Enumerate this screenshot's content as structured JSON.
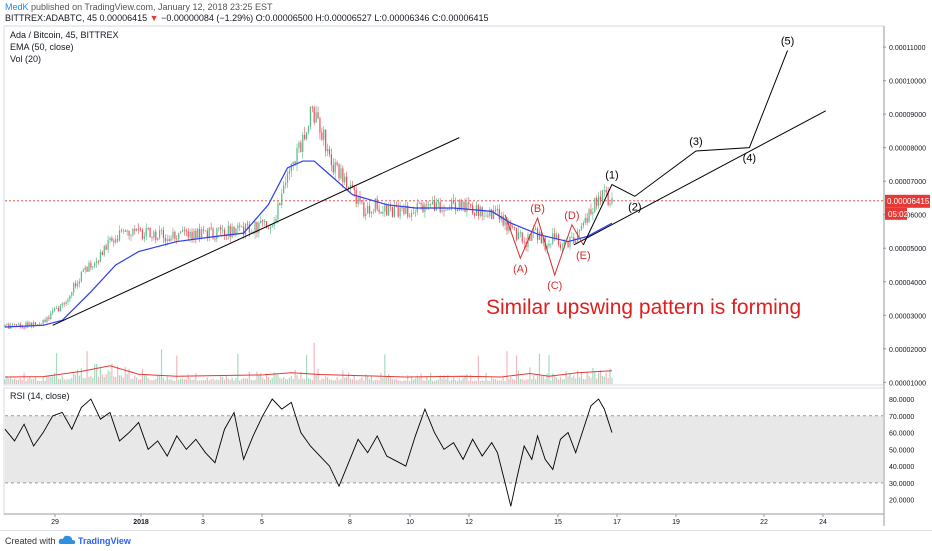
{
  "header": {
    "author": "MedK",
    "published": "published on TradingView.com, January 12, 2018 23:25 EST",
    "symbol": "BITTREX:ADABTC, 45",
    "last": "0.00006415",
    "change": "−0.00000084 (−1.29%)",
    "open_label": "O:",
    "open": "0.00006500",
    "high_label": "H:",
    "high": "0.00006527",
    "low_label": "L:",
    "low": "0.00006346",
    "close_label": "C:",
    "close": "0.00006415"
  },
  "legend": {
    "title": "Ada / Bitcoin, 45, BITTREX",
    "ema": "EMA (50, close)",
    "vol": "Vol (20)",
    "rsi": "RSI (14, close)"
  },
  "annotation_text": "Similar upswing pattern is forming",
  "price_badge": "0.00006415",
  "time_badge": "05:02",
  "footer": {
    "created": "Created with",
    "brand": "TradingView"
  },
  "colors": {
    "candle_up": "#53b987",
    "candle_down": "#eb4d5c",
    "ema": "#2b3ef0",
    "wave_black": "#000000",
    "wave_red": "#d32f2f",
    "annotation": "#e01e1e",
    "price_line": "#e53935",
    "rsi_band": "#e8e8e8",
    "vol_ma": "#e53935"
  },
  "chart_data": {
    "type": "line",
    "price_axis": {
      "ticks": [
        "0.00011000",
        "0.00010000",
        "0.00009000",
        "0.00008000",
        "0.00007000",
        "0.00006000",
        "0.00005000",
        "0.00004000",
        "0.00003000",
        "0.00002000",
        "0.00001000"
      ]
    },
    "rsi_axis": {
      "ticks": [
        "80.0000",
        "70.0000",
        "60.0000",
        "50.0000",
        "40.0000",
        "30.0000",
        "20.0000"
      ],
      "band": [
        30,
        70
      ]
    },
    "x_ticks": [
      "29",
      "2018",
      "3",
      "5",
      "8",
      "10",
      "12",
      "15",
      "17",
      "19",
      "22",
      "24"
    ],
    "price_series": [
      [
        0,
        2.65e-05
      ],
      [
        10,
        2.7e-05
      ],
      [
        20,
        2.8e-05
      ],
      [
        30,
        3.3e-05
      ],
      [
        40,
        4.2e-05
      ],
      [
        50,
        4.8e-05
      ],
      [
        56,
        5.3e-05
      ],
      [
        65,
        5.45e-05
      ],
      [
        75,
        5.45e-05
      ],
      [
        85,
        5.35e-05
      ],
      [
        95,
        5.4e-05
      ],
      [
        110,
        5.45e-05
      ],
      [
        125,
        5.55e-05
      ],
      [
        140,
        5.75e-05
      ],
      [
        148,
        7e-05
      ],
      [
        155,
        8.1e-05
      ],
      [
        160,
        9e-05
      ],
      [
        165,
        8.7e-05
      ],
      [
        170,
        7.65e-05
      ],
      [
        176,
        7.2e-05
      ],
      [
        182,
        6.7e-05
      ],
      [
        188,
        6.1e-05
      ],
      [
        194,
        6.3e-05
      ],
      [
        200,
        6.1e-05
      ],
      [
        210,
        6.1e-05
      ],
      [
        220,
        6.2e-05
      ],
      [
        230,
        6.3e-05
      ],
      [
        240,
        6.25e-05
      ],
      [
        250,
        6.1e-05
      ],
      [
        258,
        6e-05
      ],
      [
        262,
        5.7e-05
      ],
      [
        268,
        5.4e-05
      ],
      [
        273,
        5.2e-05
      ],
      [
        278,
        5.5e-05
      ],
      [
        283,
        5.1e-05
      ],
      [
        288,
        5.4e-05
      ],
      [
        292,
        5.1e-05
      ],
      [
        297,
        5.2e-05
      ],
      [
        302,
        5.5e-05
      ],
      [
        306,
        6e-05
      ],
      [
        310,
        6.4e-05
      ],
      [
        314,
        6.6e-05
      ],
      [
        318,
        6.4e-05
      ]
    ],
    "ema_series": [
      [
        0,
        2.65e-05
      ],
      [
        20,
        2.7e-05
      ],
      [
        30,
        2.85e-05
      ],
      [
        45,
        3.7e-05
      ],
      [
        58,
        4.5e-05
      ],
      [
        70,
        4.9e-05
      ],
      [
        90,
        5.2e-05
      ],
      [
        110,
        5.35e-05
      ],
      [
        125,
        5.45e-05
      ],
      [
        138,
        6.3e-05
      ],
      [
        148,
        7.4e-05
      ],
      [
        156,
        7.6e-05
      ],
      [
        162,
        7.6e-05
      ],
      [
        170,
        7.2e-05
      ],
      [
        182,
        6.6e-05
      ],
      [
        200,
        6.3e-05
      ],
      [
        215,
        6.2e-05
      ],
      [
        235,
        6.2e-05
      ],
      [
        255,
        6.1e-05
      ],
      [
        265,
        5.75e-05
      ],
      [
        280,
        5.4e-05
      ],
      [
        295,
        5.2e-05
      ],
      [
        305,
        5.35e-05
      ],
      [
        318,
        5.75e-05
      ]
    ],
    "trendlines": [
      [
        [
          25,
          2.7e-05
        ],
        [
          238,
          8.3e-05
        ]
      ],
      [
        [
          298,
          5.1e-05
        ],
        [
          430,
          9.1e-05
        ]
      ]
    ],
    "waves_historical": {
      "points": [
        [
          262,
          6e-05
        ],
        [
          270,
          4.7e-05
        ],
        [
          279,
          5.9e-05
        ],
        [
          288,
          4.2e-05
        ],
        [
          297,
          5.7e-05
        ],
        [
          303,
          5.1e-05
        ]
      ],
      "labels": [
        {
          "text": "(B)",
          "i": 2,
          "pos": "above"
        },
        {
          "text": "(A)",
          "i": 1,
          "pos": "below"
        },
        {
          "text": "(D)",
          "i": 4,
          "pos": "above"
        },
        {
          "text": "(C)",
          "i": 3,
          "pos": "below"
        },
        {
          "text": "(E)",
          "i": 5,
          "pos": "below"
        }
      ]
    },
    "waves_projection": {
      "points": [
        [
          303,
          5.1e-05
        ],
        [
          318,
          6.9e-05
        ],
        [
          330,
          6.55e-05
        ],
        [
          362,
          7.9e-05
        ],
        [
          390,
          8e-05
        ],
        [
          410,
          0.000109
        ]
      ],
      "labels": [
        {
          "text": "(1)",
          "i": 1,
          "pos": "above"
        },
        {
          "text": "(2)",
          "i": 2,
          "pos": "below"
        },
        {
          "text": "(3)",
          "i": 3,
          "pos": "above"
        },
        {
          "text": "(4)",
          "i": 4,
          "pos": "below"
        },
        {
          "text": "(5)",
          "i": 5,
          "pos": "above"
        }
      ]
    },
    "volume_ma": [
      [
        0,
        1
      ],
      [
        20,
        1.05
      ],
      [
        40,
        1.8
      ],
      [
        55,
        2.6
      ],
      [
        70,
        1.4
      ],
      [
        90,
        1.1
      ],
      [
        110,
        1.2
      ],
      [
        135,
        1.3
      ],
      [
        150,
        1.6
      ],
      [
        165,
        1.35
      ],
      [
        185,
        1.2
      ],
      [
        210,
        1.0
      ],
      [
        240,
        1.1
      ],
      [
        260,
        1.0
      ],
      [
        275,
        1.5
      ],
      [
        285,
        1.1
      ],
      [
        300,
        1.6
      ],
      [
        318,
        1.9
      ]
    ],
    "rsi_series": [
      [
        0,
        62
      ],
      [
        5,
        55
      ],
      [
        10,
        65
      ],
      [
        15,
        52
      ],
      [
        20,
        60
      ],
      [
        25,
        70
      ],
      [
        30,
        72
      ],
      [
        35,
        62
      ],
      [
        40,
        75
      ],
      [
        45,
        80
      ],
      [
        50,
        68
      ],
      [
        55,
        72
      ],
      [
        60,
        55
      ],
      [
        65,
        60
      ],
      [
        70,
        66
      ],
      [
        75,
        50
      ],
      [
        80,
        55
      ],
      [
        85,
        46
      ],
      [
        90,
        58
      ],
      [
        95,
        50
      ],
      [
        100,
        56
      ],
      [
        105,
        48
      ],
      [
        110,
        42
      ],
      [
        115,
        62
      ],
      [
        120,
        72
      ],
      [
        125,
        44
      ],
      [
        130,
        58
      ],
      [
        135,
        70
      ],
      [
        140,
        80
      ],
      [
        145,
        74
      ],
      [
        150,
        78
      ],
      [
        155,
        60
      ],
      [
        160,
        52
      ],
      [
        165,
        46
      ],
      [
        170,
        40
      ],
      [
        175,
        28
      ],
      [
        180,
        42
      ],
      [
        185,
        56
      ],
      [
        190,
        48
      ],
      [
        195,
        58
      ],
      [
        200,
        46
      ],
      [
        210,
        40
      ],
      [
        215,
        58
      ],
      [
        220,
        74
      ],
      [
        225,
        60
      ],
      [
        230,
        50
      ],
      [
        235,
        54
      ],
      [
        240,
        44
      ],
      [
        245,
        56
      ],
      [
        250,
        46
      ],
      [
        255,
        54
      ],
      [
        258,
        48
      ],
      [
        262,
        30
      ],
      [
        265,
        16
      ],
      [
        268,
        32
      ],
      [
        272,
        52
      ],
      [
        276,
        44
      ],
      [
        279,
        58
      ],
      [
        283,
        44
      ],
      [
        287,
        38
      ],
      [
        291,
        56
      ],
      [
        295,
        60
      ],
      [
        299,
        48
      ],
      [
        303,
        62
      ],
      [
        307,
        76
      ],
      [
        311,
        80
      ],
      [
        314,
        74
      ],
      [
        318,
        60
      ]
    ],
    "xlim": [
      0,
      460
    ],
    "ylim": [
      9.5e-06,
      0.000116
    ],
    "rsi_ylim": [
      12,
      86
    ]
  }
}
